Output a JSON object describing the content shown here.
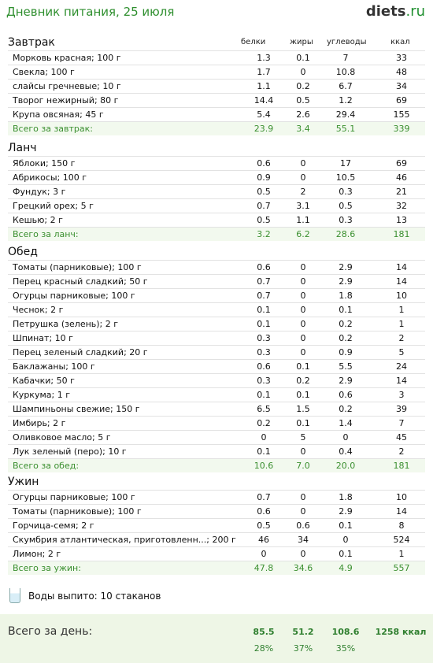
{
  "header": {
    "title": "Дневник питания, 25 июля",
    "logo_main": "diets",
    "logo_tld": ".ru"
  },
  "columns": {
    "protein": "белки",
    "fat": "жиры",
    "carbs": "углеводы",
    "kcal": "ккал"
  },
  "meals": [
    {
      "title": "Завтрак",
      "items": [
        [
          "Морковь красная; 100 г",
          "1.3",
          "0.1",
          "7",
          "33"
        ],
        [
          "Свекла; 100 г",
          "1.7",
          "0",
          "10.8",
          "48"
        ],
        [
          "слайсы гречневые; 10 г",
          "1.1",
          "0.2",
          "6.7",
          "34"
        ],
        [
          "Творог нежирный; 80 г",
          "14.4",
          "0.5",
          "1.2",
          "69"
        ],
        [
          "Крупа овсяная; 45 г",
          "5.4",
          "2.6",
          "29.4",
          "155"
        ]
      ],
      "total": [
        "Всего за завтрак:",
        "23.9",
        "3.4",
        "55.1",
        "339"
      ]
    },
    {
      "title": "Ланч",
      "items": [
        [
          "Яблоки; 150 г",
          "0.6",
          "0",
          "17",
          "69"
        ],
        [
          "Абрикосы; 100 г",
          "0.9",
          "0",
          "10.5",
          "46"
        ],
        [
          "Фундук; 3 г",
          "0.5",
          "2",
          "0.3",
          "21"
        ],
        [
          "Грецкий орех; 5 г",
          "0.7",
          "3.1",
          "0.5",
          "32"
        ],
        [
          "Кешью; 2 г",
          "0.5",
          "1.1",
          "0.3",
          "13"
        ]
      ],
      "total": [
        "Всего за ланч:",
        "3.2",
        "6.2",
        "28.6",
        "181"
      ]
    },
    {
      "title": "Обед",
      "items": [
        [
          "Томаты (парниковые); 100 г",
          "0.6",
          "0",
          "2.9",
          "14"
        ],
        [
          "Перец красный сладкий; 50 г",
          "0.7",
          "0",
          "2.9",
          "14"
        ],
        [
          "Огурцы парниковые; 100 г",
          "0.7",
          "0",
          "1.8",
          "10"
        ],
        [
          "Чеснок; 2 г",
          "0.1",
          "0",
          "0.1",
          "1"
        ],
        [
          "Петрушка (зелень); 2 г",
          "0.1",
          "0",
          "0.2",
          "1"
        ],
        [
          "Шпинат; 10 г",
          "0.3",
          "0",
          "0.2",
          "2"
        ],
        [
          "Перец зеленый сладкий; 20 г",
          "0.3",
          "0",
          "0.9",
          "5"
        ],
        [
          "Баклажаны; 100 г",
          "0.6",
          "0.1",
          "5.5",
          "24"
        ],
        [
          "Кабачки; 50 г",
          "0.3",
          "0.2",
          "2.9",
          "14"
        ],
        [
          "Куркума; 1 г",
          "0.1",
          "0.1",
          "0.6",
          "3"
        ],
        [
          "Шампиньоны свежие; 150 г",
          "6.5",
          "1.5",
          "0.2",
          "39"
        ],
        [
          "Имбирь; 2 г",
          "0.2",
          "0.1",
          "1.4",
          "7"
        ],
        [
          "Оливковое масло; 5 г",
          "0",
          "5",
          "0",
          "45"
        ],
        [
          "Лук зеленый (перо); 10 г",
          "0.1",
          "0",
          "0.4",
          "2"
        ]
      ],
      "total": [
        "Всего за обед:",
        "10.6",
        "7.0",
        "20.0",
        "181"
      ]
    },
    {
      "title": "Ужин",
      "items": [
        [
          "Огурцы парниковые; 100 г",
          "0.7",
          "0",
          "1.8",
          "10"
        ],
        [
          "Томаты (парниковые); 100 г",
          "0.6",
          "0",
          "2.9",
          "14"
        ],
        [
          "Горчица-семя; 2 г",
          "0.5",
          "0.6",
          "0.1",
          "8"
        ],
        [
          "Скумбрия атлантическая, приготовленн...; 200 г",
          "46",
          "34",
          "0",
          "524"
        ],
        [
          "Лимон; 2 г",
          "0",
          "0",
          "0.1",
          "1"
        ]
      ],
      "total": [
        "Всего за ужин:",
        "47.8",
        "34.6",
        "4.9",
        "557"
      ]
    }
  ],
  "water": {
    "text": "Воды выпито: 10 стаканов"
  },
  "day": {
    "label": "Всего за день:",
    "protein": "85.5",
    "fat": "51.2",
    "carbs": "108.6",
    "kcal": "1258 ккал",
    "protein_pct": "28%",
    "fat_pct": "37%",
    "carbs_pct": "35%"
  }
}
